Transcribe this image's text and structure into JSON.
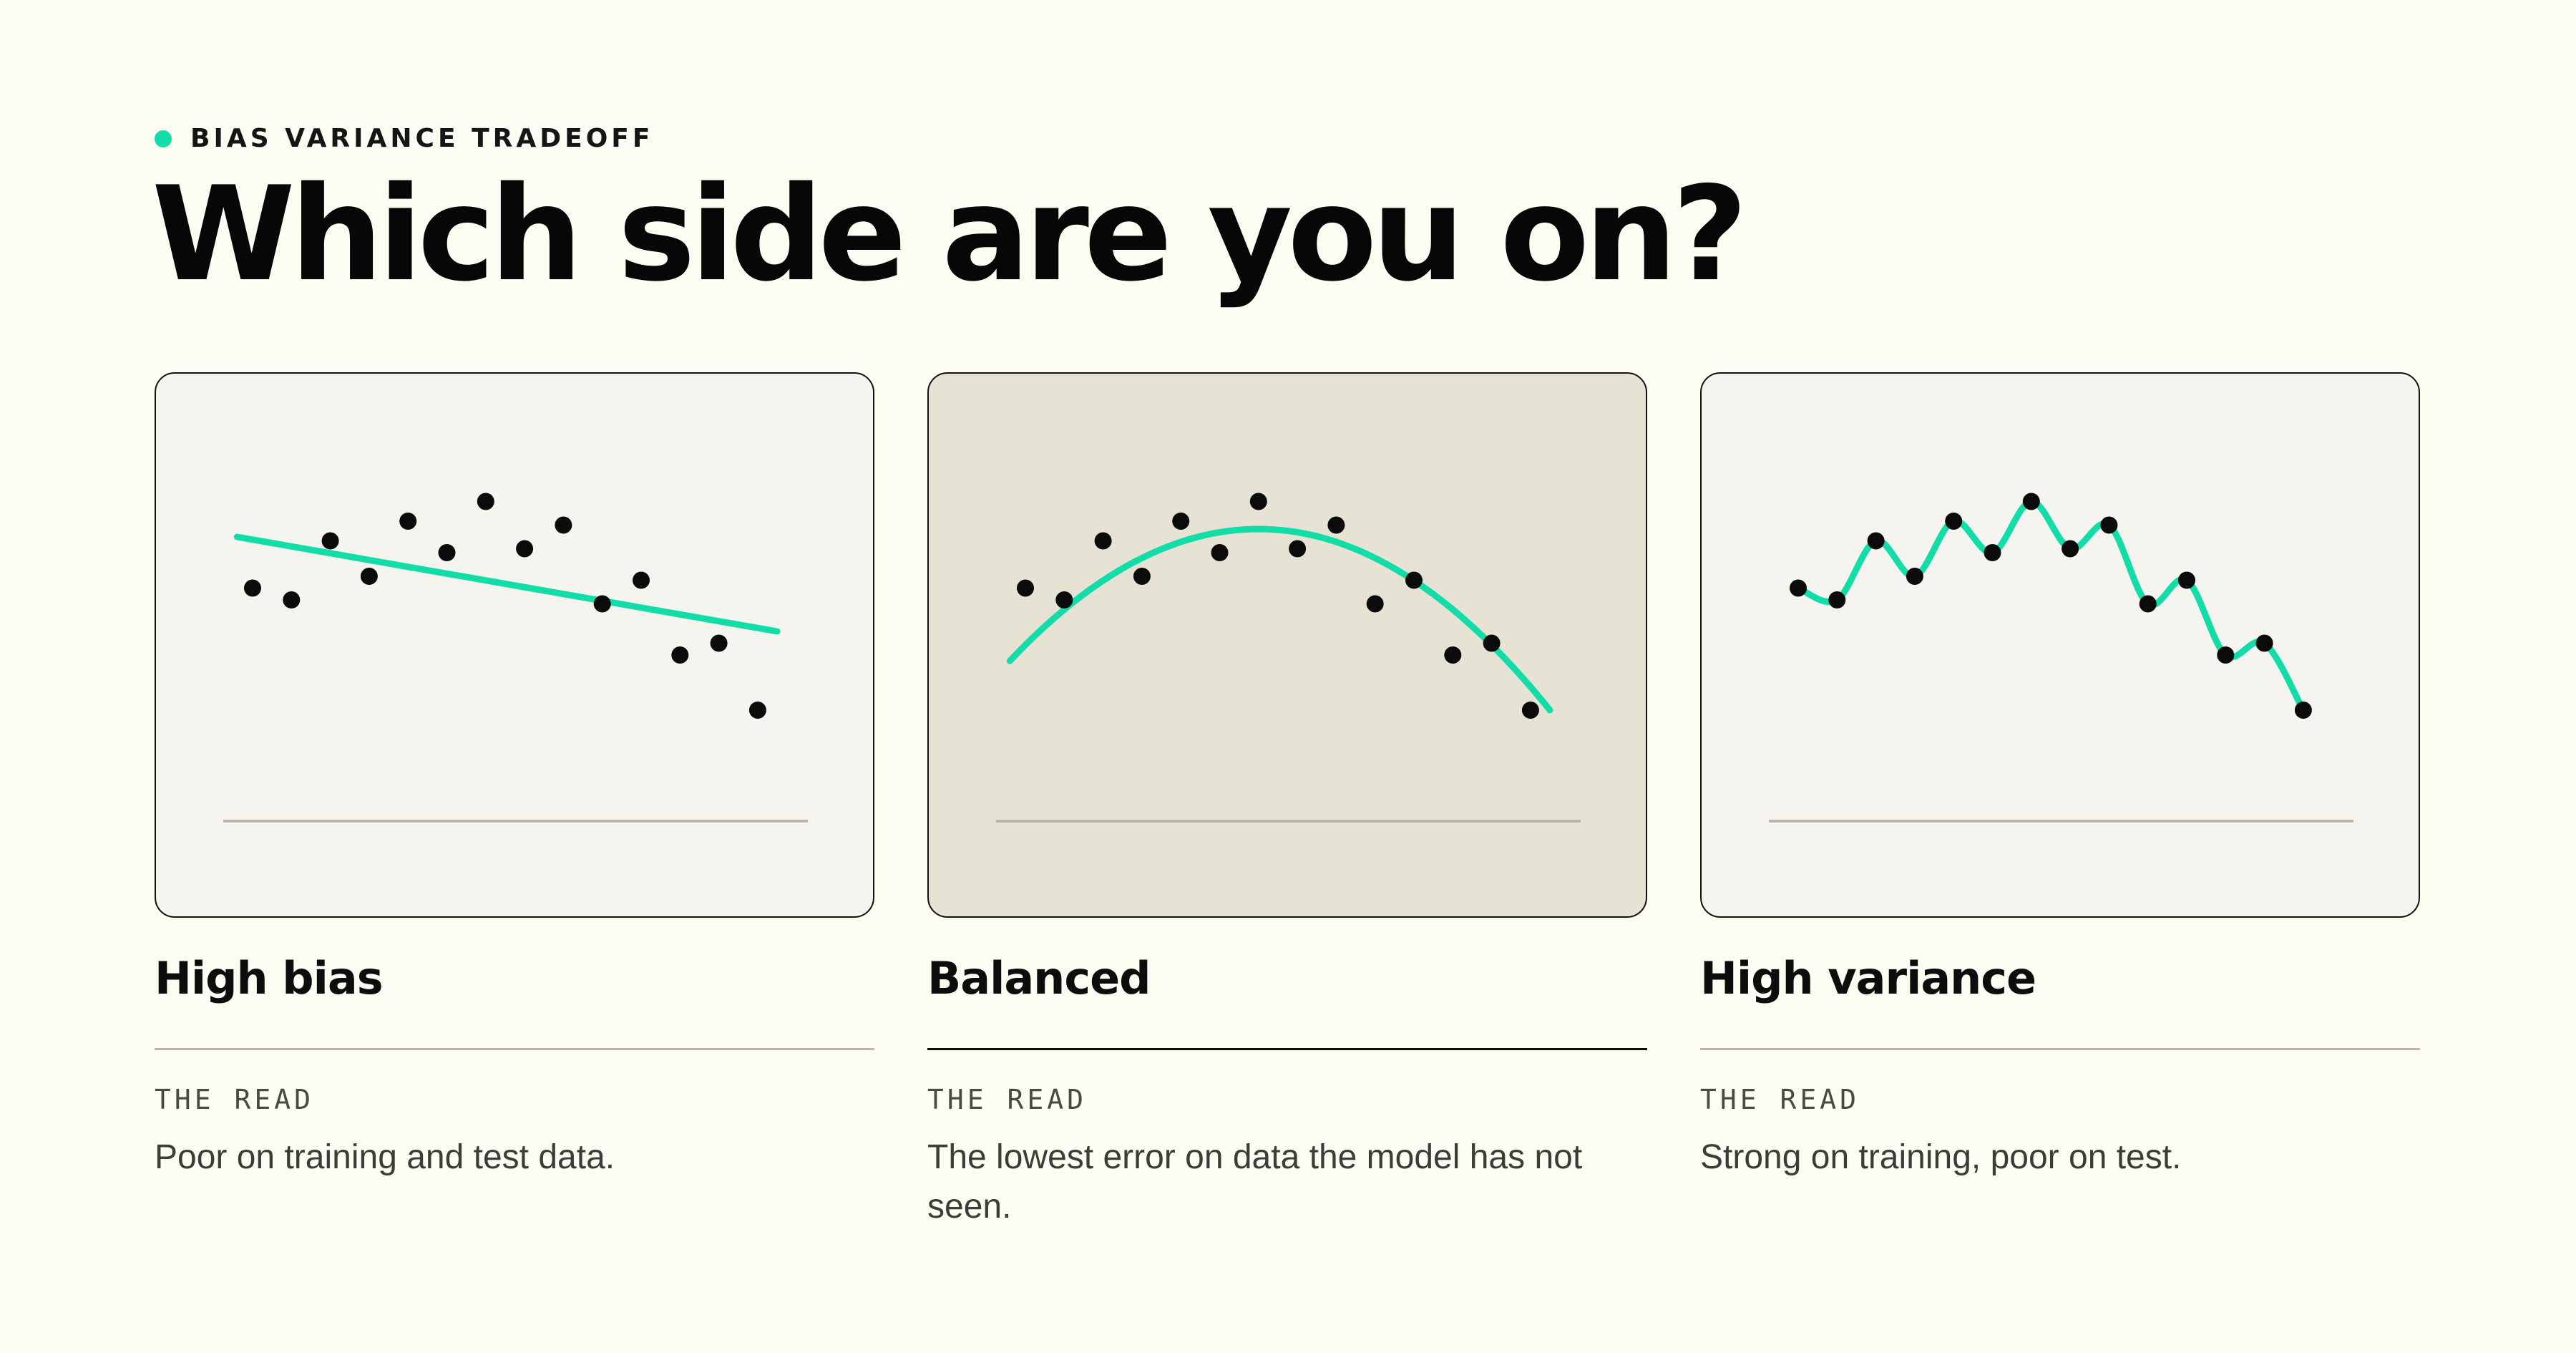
{
  "eyebrow": {
    "label": "BIAS VARIANCE TRADEOFF",
    "dot_color": "#12DDA8"
  },
  "headline": "Which side are you on?",
  "accent_color": "#12DDA8",
  "panels": [
    {
      "title": "High bias",
      "read_label": "THE READ",
      "description": "Poor on training and test data.",
      "highlighted": false,
      "fit": "linear"
    },
    {
      "title": "Balanced",
      "read_label": "THE READ",
      "description": "The lowest error on data the model has not seen.",
      "highlighted": true,
      "fit": "quadratic"
    },
    {
      "title": "High variance",
      "read_label": "THE READ",
      "description": "Strong on training, poor on test.",
      "highlighted": false,
      "fit": "interpolating"
    }
  ],
  "chart_data": [
    {
      "type": "scatter",
      "fit": "linear",
      "x": [
        1,
        2,
        3,
        4,
        5,
        6,
        7,
        8,
        9,
        10,
        11,
        12,
        13,
        14
      ],
      "y": [
        5.1,
        4.8,
        6.3,
        5.4,
        6.8,
        6.0,
        7.3,
        6.1,
        6.7,
        4.7,
        5.3,
        3.4,
        3.7,
        2.0
      ],
      "fit_line": {
        "x0": 0.6,
        "y0": 6.4,
        "x1": 14.5,
        "y1": 4.0
      }
    },
    {
      "type": "scatter",
      "fit": "quadratic",
      "x": [
        1,
        2,
        3,
        4,
        5,
        6,
        7,
        8,
        9,
        10,
        11,
        12,
        13,
        14
      ],
      "y": [
        5.1,
        4.8,
        6.3,
        5.4,
        6.8,
        6.0,
        7.3,
        6.1,
        6.7,
        4.7,
        5.3,
        3.4,
        3.7,
        2.0
      ],
      "fit_curve": {
        "vertex_x": 7.0,
        "vertex_y": 6.6,
        "x_start": 0.6,
        "x_end": 14.5
      }
    },
    {
      "type": "scatter",
      "fit": "interpolating",
      "x": [
        1,
        2,
        3,
        4,
        5,
        6,
        7,
        8,
        9,
        10,
        11,
        12,
        13,
        14
      ],
      "y": [
        5.1,
        4.8,
        6.3,
        5.4,
        6.8,
        6.0,
        7.3,
        6.1,
        6.7,
        4.7,
        5.3,
        3.4,
        3.7,
        2.0
      ]
    }
  ]
}
